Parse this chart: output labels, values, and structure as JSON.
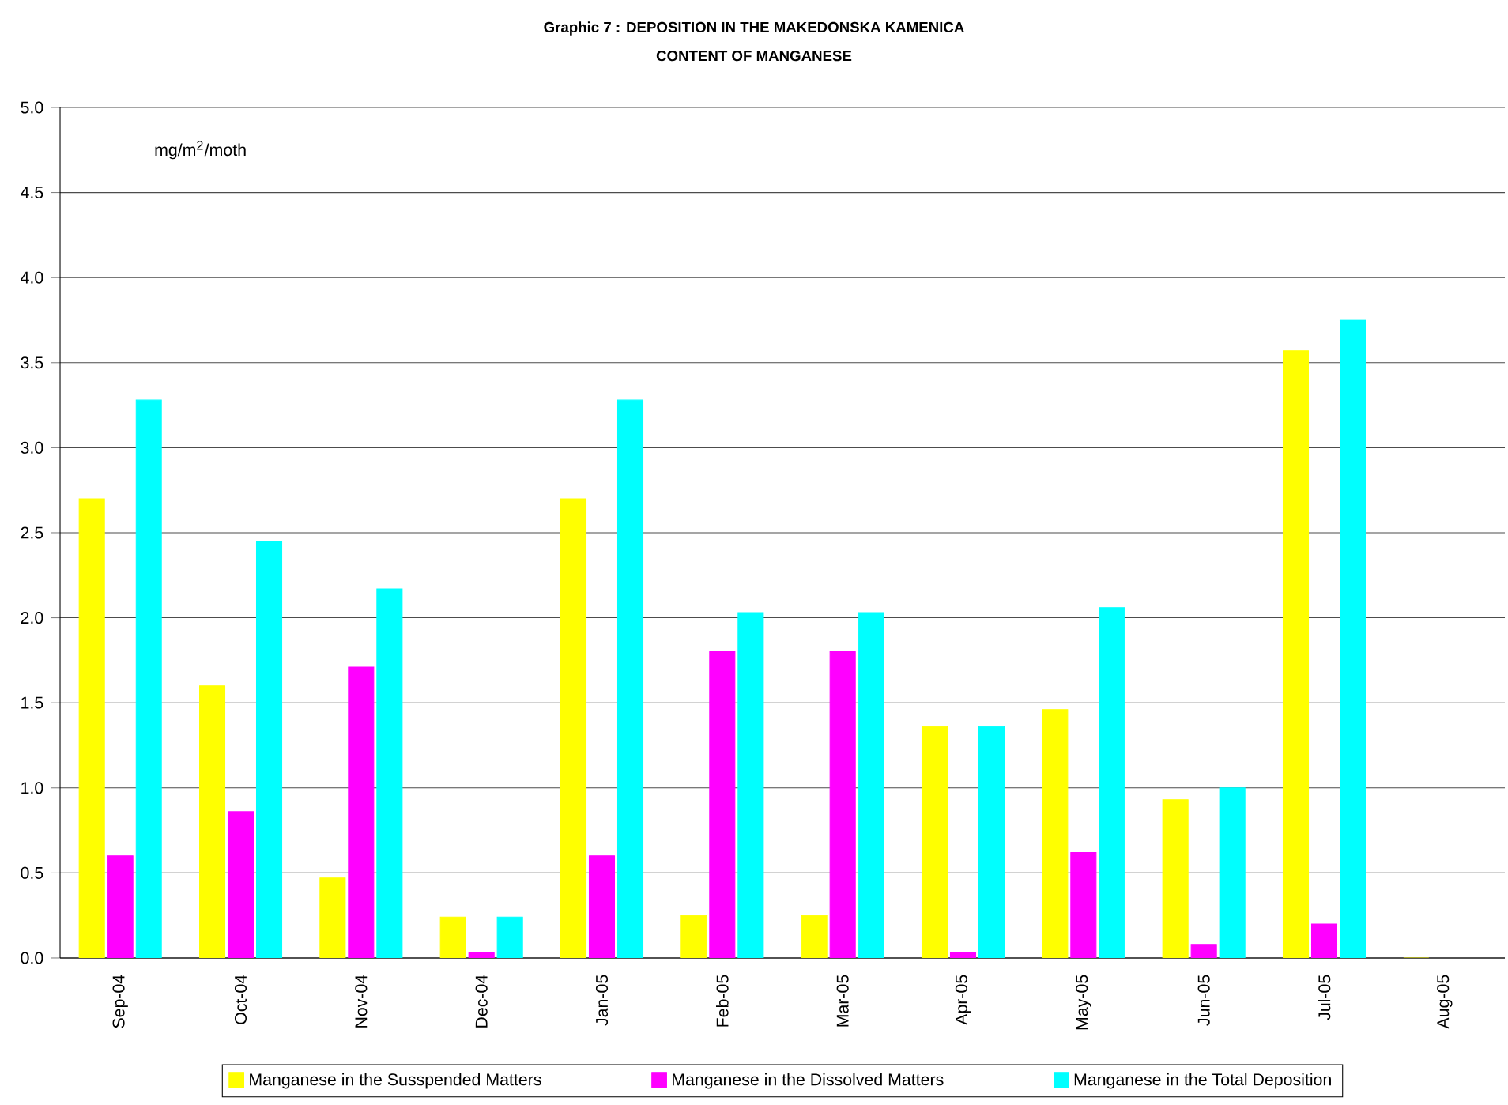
{
  "chart_data": {
    "type": "bar",
    "title": "Graphic 7 : DEPOSITION IN THE MAKEDONSKA KAMENICA",
    "subtitle": "CONTENT OF MANGANESE",
    "annotations": [
      "mg/m$^{2}$/moth"
    ],
    "categories": [
      "Sep-04",
      "Oct-04",
      "Nov-04",
      "Dec-04",
      "Jan-05",
      "Feb-05",
      "Mar-05",
      "Apr-05",
      "May-05",
      "Jun-05",
      "Jul-05",
      "Aug-05"
    ],
    "series": [
      {
        "name": "Manganese in the Susspended Matters",
        "color": "#ffff00",
        "values": [
          2.7,
          1.6,
          0.47,
          0.24,
          2.7,
          0.25,
          0.25,
          1.36,
          1.46,
          0.93,
          3.57,
          0
        ]
      },
      {
        "name": "Manganese in the Dissolved Matters",
        "color": "#ff00ff",
        "values": [
          0.6,
          0.86,
          1.71,
          0.03,
          0.6,
          1.8,
          1.8,
          0.03,
          0.62,
          0.08,
          0.2,
          null
        ]
      },
      {
        "name": "Manganese in the Total Deposition",
        "color": "#00ffff",
        "values": [
          3.28,
          2.45,
          2.17,
          0.24,
          3.28,
          2.03,
          2.03,
          1.36,
          2.06,
          1.0,
          3.75,
          null
        ]
      }
    ],
    "ylim": [
      0,
      5
    ],
    "yticks": [
      {
        "value": 0,
        "label": "0.0"
      },
      {
        "value": 0.5,
        "label": "0.5"
      },
      {
        "value": 1,
        "label": "1.0"
      },
      {
        "value": 1.5,
        "label": "1.5"
      },
      {
        "value": 2,
        "label": "2.0"
      },
      {
        "value": 2.5,
        "label": "2.5"
      },
      {
        "value": 3,
        "label": "3.0"
      },
      {
        "value": 3.5,
        "label": "3.5"
      },
      {
        "value": 4,
        "label": "4.0"
      },
      {
        "value": 4.5,
        "label": "4.5"
      },
      {
        "value": 5,
        "label": "5.0"
      }
    ],
    "grid": "y",
    "legend": "bottom"
  }
}
